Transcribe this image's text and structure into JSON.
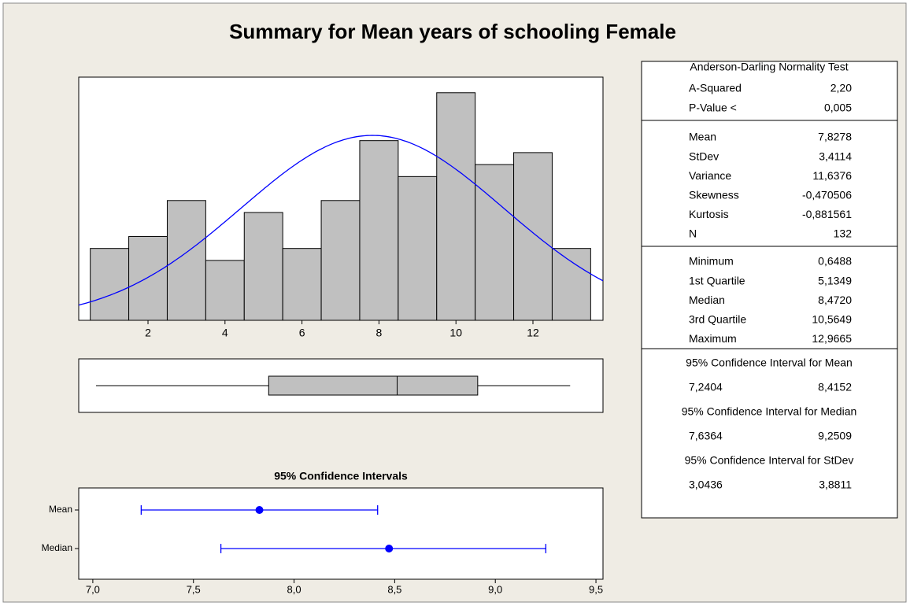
{
  "title": "Summary for Mean years of schooling Female",
  "chart_data": [
    {
      "type": "histogram",
      "bins": [
        0.5,
        1.5,
        2.5,
        3.5,
        4.5,
        5.5,
        6.5,
        7.5,
        8.5,
        9.5,
        10.5,
        11.5,
        12.5,
        13.5
      ],
      "values": [
        6,
        7,
        10,
        5,
        9,
        6,
        10,
        15,
        12,
        19,
        13,
        14,
        6
      ],
      "xlim": [
        0.2,
        13.82
      ],
      "ylim": [
        0,
        20.3
      ],
      "xticks": [
        2,
        4,
        6,
        8,
        10,
        12
      ],
      "color": "#c0c0c0",
      "curve_color": "#0000ff"
    },
    {
      "type": "box",
      "min": 0.6488,
      "q1": 5.1349,
      "median": 8.472,
      "q3": 10.5649,
      "max": 12.9665,
      "xlim": [
        0.2,
        13.82
      ],
      "color": "#c0c0c0"
    },
    {
      "type": "interval",
      "title": "95% Confidence Intervals",
      "categories": [
        "Mean",
        "Median"
      ],
      "values": [
        7.8278,
        8.472
      ],
      "low": [
        7.2404,
        7.6364
      ],
      "high": [
        8.4152,
        9.2509
      ],
      "xlim": [
        6.93,
        9.535
      ],
      "xticks": [
        {
          "value": 7,
          "label": "7,0"
        },
        {
          "value": 7.5,
          "label": "7,5"
        },
        {
          "value": 8,
          "label": "8,0"
        },
        {
          "value": 8.5,
          "label": "8,5"
        },
        {
          "value": 9,
          "label": "9,0"
        },
        {
          "value": 9.5,
          "label": "9,5"
        }
      ],
      "color": "#0000ff"
    }
  ],
  "stats": {
    "title": "Anderson-Darling Normality Test",
    "sections": [
      [
        [
          "A-Squared",
          "2,20"
        ],
        [
          "P-Value <",
          "0,005"
        ]
      ],
      [
        [
          "Mean",
          "7,8278"
        ],
        [
          "StDev",
          "3,4114"
        ],
        [
          "Variance",
          "11,6376"
        ],
        [
          "Skewness",
          "-0,470506"
        ],
        [
          "Kurtosis",
          "-0,881561"
        ],
        [
          "N",
          "132"
        ]
      ],
      [
        [
          "Minimum",
          "0,6488"
        ],
        [
          "1st Quartile",
          "5,1349"
        ],
        [
          "Median",
          "8,4720"
        ],
        [
          "3rd Quartile",
          "10,5649"
        ],
        [
          "Maximum",
          "12,9665"
        ]
      ]
    ],
    "intervals": [
      {
        "label": "95% Confidence Interval for Mean",
        "low": "7,2404",
        "high": "8,4152"
      },
      {
        "label": "95% Confidence Interval for Median",
        "low": "7,6364",
        "high": "9,2509"
      },
      {
        "label": "95% Confidence Interval for StDev",
        "low": "3,0436",
        "high": "3,8811"
      }
    ]
  }
}
